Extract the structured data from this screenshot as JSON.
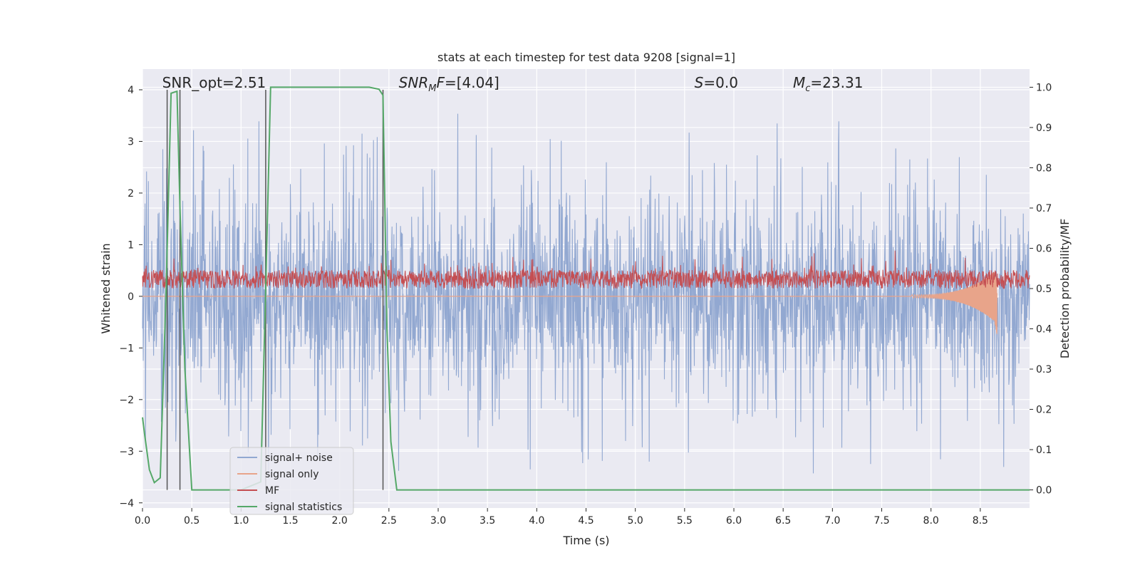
{
  "chart_data": {
    "type": "line",
    "title": "stats at each timestep for test data 9208 [signal=1]",
    "xlabel": "Time (s)",
    "ylabel": "Whitened strain",
    "ylabel_right": "Detection probability/MF",
    "xlim": [
      0,
      9.0
    ],
    "ylim": [
      -4.1,
      4.4
    ],
    "ylim_right": [
      -0.045,
      1.045
    ],
    "x_ticks": [
      "0.0",
      "0.5",
      "1.0",
      "1.5",
      "2.0",
      "2.5",
      "3.0",
      "3.5",
      "4.0",
      "4.5",
      "5.0",
      "5.5",
      "6.0",
      "6.5",
      "7.0",
      "7.5",
      "8.0",
      "8.5"
    ],
    "y_ticks": [
      "−4",
      "−3",
      "−2",
      "−1",
      "0",
      "1",
      "2",
      "3",
      "4"
    ],
    "y_ticks_right": [
      "0.0",
      "0.1",
      "0.2",
      "0.3",
      "0.4",
      "0.5",
      "0.6",
      "0.7",
      "0.8",
      "0.9",
      "1.0"
    ],
    "grid": true,
    "legend_position": "lower-left",
    "annotations": [
      {
        "text": "SNR_opt=2.51"
      },
      {
        "prefix": "SNR",
        "sub": "M",
        "suffix": "F=[4.04]",
        "italic": true
      },
      {
        "prefix": "S",
        "suffix": "=0.0",
        "italic": true
      },
      {
        "prefix": "M",
        "sub": "c",
        "suffix": "=23.31",
        "italic": true
      }
    ],
    "vertical_lines_x": [
      0.25,
      0.38,
      1.25,
      2.44
    ],
    "series": [
      {
        "name": "signal+ noise",
        "color": "#92a8d1",
        "envelope_pos": 2.2,
        "envelope_neg": -2.3,
        "peak_max": 3.85,
        "peak_min": -3.65
      },
      {
        "name": "signal only",
        "color": "#e8a48a",
        "chirp_end_x": 8.67,
        "chirp_min": -0.5
      },
      {
        "name": "MF",
        "color": "#c44e52",
        "baseline": 0.15,
        "upper": 0.55,
        "peak_max": 0.95
      },
      {
        "name": "signal statistics",
        "color": "#55a868",
        "axis": "right",
        "x": [
          0.0,
          0.02,
          0.07,
          0.12,
          0.18,
          0.24,
          0.29,
          0.35,
          0.38,
          0.43,
          0.5,
          0.7,
          1.0,
          1.2,
          1.25,
          1.3,
          1.5,
          2.0,
          2.3,
          2.4,
          2.44,
          2.48,
          2.52,
          2.58,
          3.0,
          4.0,
          5.0,
          6.0,
          7.0,
          8.0,
          9.0
        ],
        "y": [
          0.18,
          0.14,
          0.05,
          0.018,
          0.03,
          0.5,
          0.985,
          0.99,
          0.7,
          0.3,
          0.0,
          0.0,
          0.0,
          0.02,
          0.5,
          1.0,
          1.0,
          1.0,
          1.0,
          0.995,
          0.98,
          0.4,
          0.12,
          0.0,
          0.0,
          0.0,
          0.0,
          0.0,
          0.0,
          0.0,
          0.0
        ]
      }
    ]
  }
}
